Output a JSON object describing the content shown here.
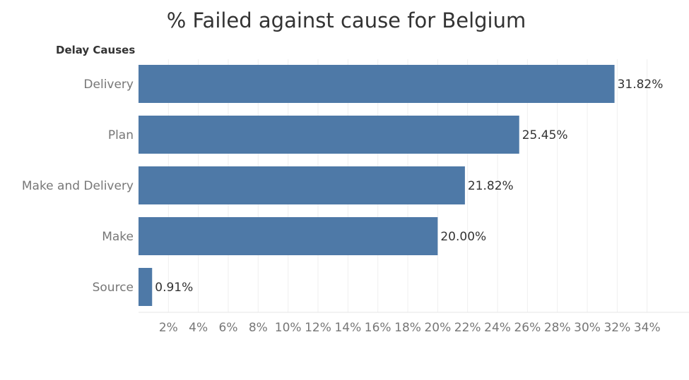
{
  "chart_data": {
    "type": "bar",
    "orientation": "horizontal",
    "title": "% Failed against cause for Belgium",
    "row_header": "Delay Causes",
    "categories": [
      "Delivery",
      "Plan",
      "Make and Delivery",
      "Make",
      "Source"
    ],
    "values": [
      31.82,
      25.45,
      21.82,
      20.0,
      0.91
    ],
    "value_labels": [
      "31.82%",
      "25.45%",
      "21.82%",
      "20.00%",
      "0.91%"
    ],
    "xlim": [
      0,
      36.8
    ],
    "x_ticks": [
      2,
      4,
      6,
      8,
      10,
      12,
      14,
      16,
      18,
      20,
      22,
      24,
      26,
      28,
      30,
      32,
      34
    ],
    "x_tick_labels": [
      "2%",
      "4%",
      "6%",
      "8%",
      "10%",
      "12%",
      "14%",
      "16%",
      "18%",
      "20%",
      "22%",
      "24%",
      "26%",
      "28%",
      "30%",
      "32%",
      "34%"
    ],
    "grid": true,
    "colors": {
      "bar": "#4e79a7",
      "grid": "#efefef",
      "axis_text": "#777777",
      "label_text": "#333333"
    }
  }
}
